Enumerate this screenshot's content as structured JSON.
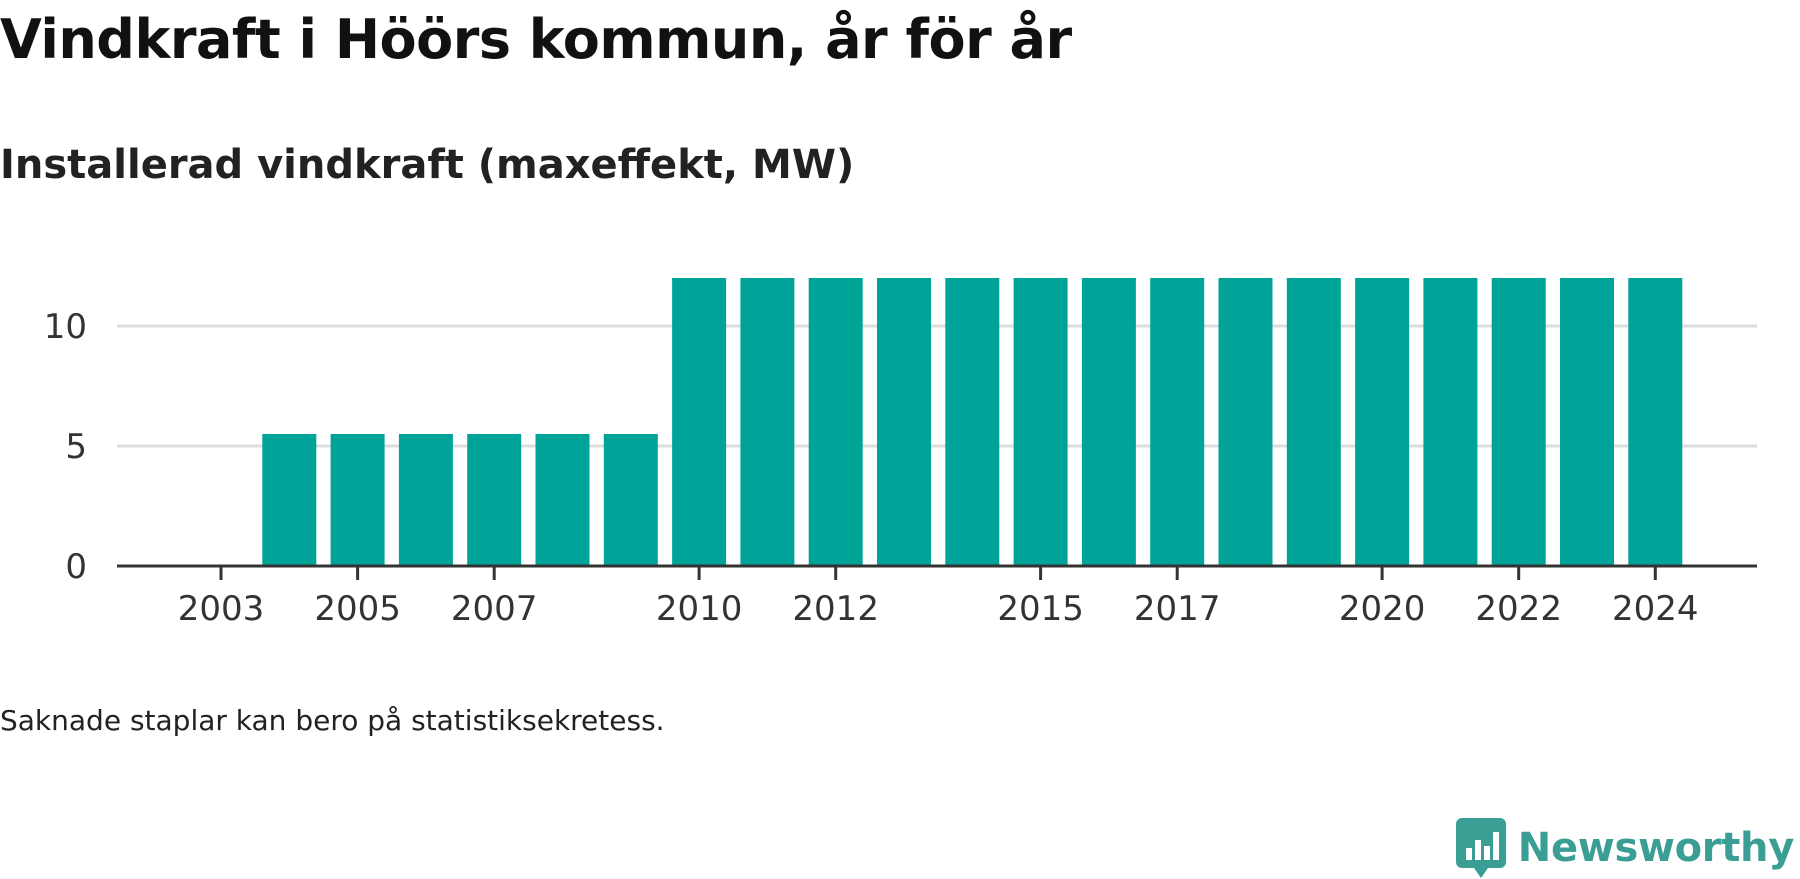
{
  "title": "Vindkraft i Höörs kommun, år för år",
  "subtitle": "Installerad vindkraft (maxeffekt, MW)",
  "note": "Saknade staplar kan bero på statistiksekretess.",
  "brand": {
    "name": "Newsworthy",
    "icon": "newsworthy-logo-icon"
  },
  "colors": {
    "bar": "#00a398",
    "grid": "#dddddd",
    "axis": "#333333",
    "brand": "#3a9e95"
  },
  "chart_data": {
    "type": "bar",
    "categories": [
      "2003",
      "2004",
      "2005",
      "2006",
      "2007",
      "2008",
      "2009",
      "2010",
      "2011",
      "2012",
      "2013",
      "2014",
      "2015",
      "2016",
      "2017",
      "2018",
      "2019",
      "2020",
      "2021",
      "2022",
      "2023",
      "2024"
    ],
    "values": [
      0,
      5.5,
      5.5,
      5.5,
      5.5,
      5.5,
      5.5,
      12,
      12,
      12,
      12,
      12,
      12,
      12,
      12,
      12,
      12,
      12,
      12,
      12,
      12,
      12
    ],
    "x_tick_labels": [
      "2003",
      "2005",
      "2007",
      "2010",
      "2012",
      "2015",
      "2017",
      "2020",
      "2022",
      "2024"
    ],
    "y_ticks": [
      0,
      5,
      10
    ],
    "ylim": [
      0,
      12
    ],
    "grid": true,
    "legend": "none"
  }
}
